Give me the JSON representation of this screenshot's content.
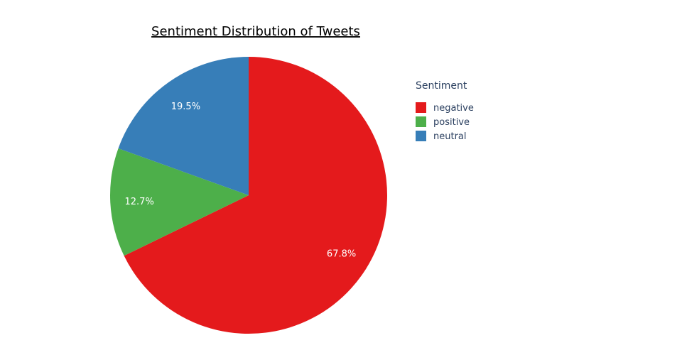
{
  "chart_data": {
    "type": "pie",
    "title": "Sentiment Distribution of Tweets",
    "legend": {
      "title": "Sentiment",
      "placement": "right"
    },
    "slices": [
      {
        "name": "negative",
        "percent": 67.8,
        "label": "67.8%",
        "color": "#e41a1c"
      },
      {
        "name": "positive",
        "percent": 12.7,
        "label": "12.7%",
        "color": "#4daf4a"
      },
      {
        "name": "neutral",
        "percent": 19.5,
        "label": "19.5%",
        "color": "#377eb8"
      }
    ]
  }
}
